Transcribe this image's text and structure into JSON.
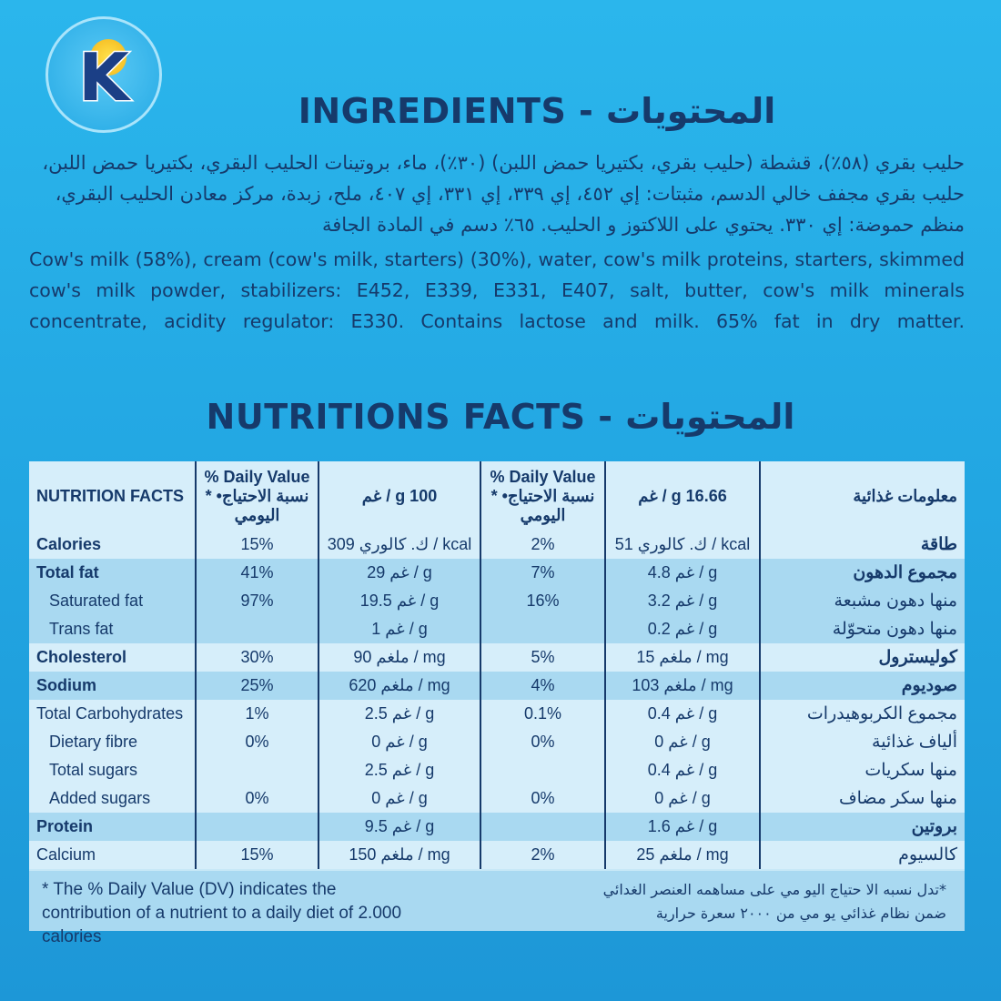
{
  "brand": {
    "logo_letter": "K"
  },
  "ingredients": {
    "title": "INGREDIENTS - المحتويات",
    "arabic": "حليب بقري (٥٨٪)، قشطة (حليب بقري، بكتيريا حمض اللبن) (٣٠٪)، ماء، بروتينات الحليب البقري، بكتيريا حمض اللبن، حليب بقري مجفف خالي الدسم، مثبتات: إي ٤٥٢، إي ٣٣٩، إي ٣٣١، إي ٤٠٧، ملح، زبدة، مركز معادن الحليب البقري، منظم حموضة: إي ٣٣٠. يحتوي على اللاكتوز و الحليب. ٦٥٪ دسم في المادة الجافة",
    "english": "Cow's milk (58%), cream (cow's milk, starters) (30%), water, cow's milk proteins, starters, skimmed cow's milk powder, stabilizers: E452, E339, E331, E407, salt, butter, cow's milk minerals concentrate, acidity regulator: E330. Contains lactose and milk. 65% fat in dry matter."
  },
  "nutrition": {
    "title": "NUTRITIONS FACTS - المحتويات",
    "headers": [
      "NUTRITION FACTS",
      "% Daily Value * •نسبة الاحتياج اليومي",
      "غم / g 100",
      "% Daily Value * •نسبة الاحتياج اليومي",
      "غم / g 16.66",
      "معلومات غذائية"
    ],
    "rows": [
      {
        "name": "Calories",
        "dv100": "15%",
        "per100": "309 ك. كالوري / kcal",
        "dvp": "2%",
        "perp": "51 ك. كالوري / kcal",
        "ar": "طاقة"
      },
      {
        "name": "Total fat",
        "dv100": "41%",
        "per100": "29 غم / g",
        "dvp": "7%",
        "perp": "4.8 غم / g",
        "ar": "مجموع الدهون"
      },
      {
        "name": "Saturated fat",
        "dv100": "97%",
        "per100": "19.5 غم / g",
        "dvp": "16%",
        "perp": "3.2 غم / g",
        "ar": "منها دهون مشبعة"
      },
      {
        "name": "Trans fat",
        "dv100": "",
        "per100": "1 غم / g",
        "dvp": "",
        "perp": "0.2 غم / g",
        "ar": "منها دهون متحوّلة"
      },
      {
        "name": "Cholesterol",
        "dv100": "30%",
        "per100": "90 ملغم / mg",
        "dvp": "5%",
        "perp": "15 ملغم / mg",
        "ar": "كوليسترول"
      },
      {
        "name": "Sodium",
        "dv100": "25%",
        "per100": "620 ملغم / mg",
        "dvp": "4%",
        "perp": "103 ملغم / mg",
        "ar": "صوديوم"
      },
      {
        "name": "Total Carbohydrates",
        "dv100": "1%",
        "per100": "2.5 غم / g",
        "dvp": "0.1%",
        "perp": "0.4 غم / g",
        "ar": "مجموع الكربوهيدرات"
      },
      {
        "name": "Dietary fibre",
        "dv100": "0%",
        "per100": "0 غم / g",
        "dvp": "0%",
        "perp": "0 غم / g",
        "ar": "ألياف غذائية"
      },
      {
        "name": "Total sugars",
        "dv100": "",
        "per100": "2.5 غم / g",
        "dvp": "",
        "perp": "0.4 غم / g",
        "ar": "منها سكريات"
      },
      {
        "name": "Added sugars",
        "dv100": "0%",
        "per100": "0 غم / g",
        "dvp": "0%",
        "perp": "0 غم / g",
        "ar": "منها سكر مضاف"
      },
      {
        "name": "Protein",
        "dv100": "",
        "per100": "9.5 غم / g",
        "dvp": "",
        "perp": "1.6 غم / g",
        "ar": "بروتين"
      },
      {
        "name": "Calcium",
        "dv100": "15%",
        "per100": "150 ملغم / mg",
        "dvp": "2%",
        "perp": "25 ملغم / mg",
        "ar": "كالسيوم"
      }
    ],
    "footnote_en": "* The % Daily Value (DV) indicates the contribution of a nutrient to a daily diet of 2.000 calories",
    "footnote_ar": "*تدل نسبه الا حتياج اليو مي على مساهمه العنصر الغدائي ضمن نظام غذائي يو مي من ٢٠٠٠ سعرة حرارية"
  },
  "colors": {
    "background": "#22a6e2",
    "text": "#163a6b",
    "table_light": "#d6eefa",
    "table_dark": "#a9d9f1"
  }
}
